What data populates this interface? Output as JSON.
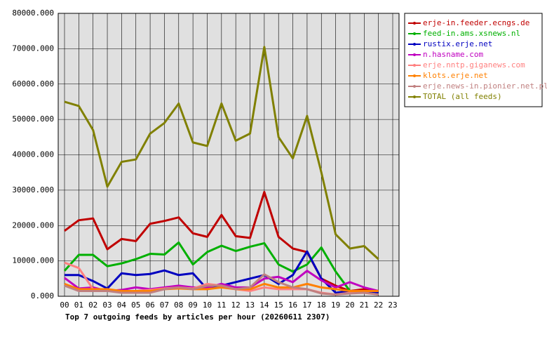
{
  "chart_data": {
    "type": "line",
    "title": "Top 7 outgoing feeds by articles per hour (20260611 2307)",
    "categories": [
      "00",
      "01",
      "02",
      "03",
      "04",
      "05",
      "06",
      "07",
      "08",
      "09",
      "10",
      "11",
      "12",
      "13",
      "14",
      "15",
      "16",
      "17",
      "18",
      "19",
      "20",
      "21",
      "22",
      "23"
    ],
    "series": [
      {
        "name": "erje-in.feeder.ecngs.de",
        "color": "#c00000",
        "values": [
          18500,
          21500,
          22000,
          13300,
          16200,
          15600,
          20500,
          21300,
          22300,
          17800,
          16800,
          23000,
          17000,
          16500,
          29500,
          16800,
          13500,
          12500,
          5000,
          3000,
          1500,
          2000,
          1500,
          null
        ]
      },
      {
        "name": "feed-in.ams.xsnews.nl",
        "color": "#00b000",
        "values": [
          7200,
          11700,
          11700,
          8500,
          9300,
          10500,
          12000,
          11800,
          15200,
          9000,
          12500,
          14300,
          12800,
          14000,
          15000,
          9000,
          7000,
          9000,
          13800,
          7000,
          1500,
          1500,
          1000,
          null
        ]
      },
      {
        "name": "rustix.erje.net",
        "color": "#0000c0",
        "values": [
          6000,
          6000,
          4300,
          2200,
          6500,
          6000,
          6300,
          7300,
          6000,
          6500,
          2000,
          3000,
          4000,
          5000,
          6000,
          3500,
          6000,
          12700,
          5000,
          1000,
          1500,
          1500,
          1000,
          null
        ]
      },
      {
        "name": "n.hasname.com",
        "color": "#c000c0",
        "values": [
          5200,
          2200,
          2500,
          1500,
          1800,
          2500,
          2000,
          2500,
          3000,
          2500,
          2500,
          3500,
          2500,
          2500,
          5000,
          5500,
          4000,
          7200,
          4500,
          2500,
          4000,
          2500,
          1500,
          null
        ]
      },
      {
        "name": "erje.nntp.giganews.com",
        "color": "#ff8080",
        "values": [
          9500,
          8000,
          2000,
          1500,
          1500,
          1500,
          1800,
          2200,
          2500,
          2200,
          3500,
          3000,
          2000,
          1500,
          2500,
          2000,
          2000,
          2000,
          1000,
          500,
          1000,
          1000,
          500,
          null
        ]
      },
      {
        "name": "klots.erje.net",
        "color": "#ff8000",
        "values": [
          3500,
          2000,
          2000,
          2000,
          1500,
          1500,
          1500,
          2000,
          2200,
          2000,
          2000,
          2500,
          2000,
          2000,
          3500,
          2500,
          2500,
          3500,
          2500,
          2000,
          1500,
          1500,
          1500,
          null
        ]
      },
      {
        "name": "erje.news-in.pionier.net.pl",
        "color": "#c08080",
        "values": [
          3000,
          1500,
          1500,
          1500,
          1000,
          1000,
          1000,
          2000,
          2500,
          2000,
          3000,
          3000,
          2000,
          2500,
          6200,
          4000,
          2500,
          2000,
          800,
          500,
          800,
          1000,
          500,
          null
        ]
      },
      {
        "name": "TOTAL (all feeds)",
        "color": "#808000",
        "values": [
          55000,
          53800,
          47000,
          31000,
          38000,
          38700,
          46000,
          49000,
          54500,
          43500,
          42500,
          54500,
          44000,
          46000,
          70500,
          45000,
          39000,
          51000,
          35000,
          17500,
          13500,
          14200,
          10500,
          null
        ]
      }
    ],
    "ylim": [
      0,
      80000
    ],
    "yticks": [
      {
        "value": 0,
        "label": "0.000"
      },
      {
        "value": 10000,
        "label": "10000.000"
      },
      {
        "value": 20000,
        "label": "20000.000"
      },
      {
        "value": 30000,
        "label": "30000.000"
      },
      {
        "value": 40000,
        "label": "40000.000"
      },
      {
        "value": 50000,
        "label": "50000.000"
      },
      {
        "value": 60000,
        "label": "60000.000"
      },
      {
        "value": 70000,
        "label": "70000.000"
      },
      {
        "value": 80000,
        "label": "80000.000"
      }
    ],
    "grid": true
  }
}
